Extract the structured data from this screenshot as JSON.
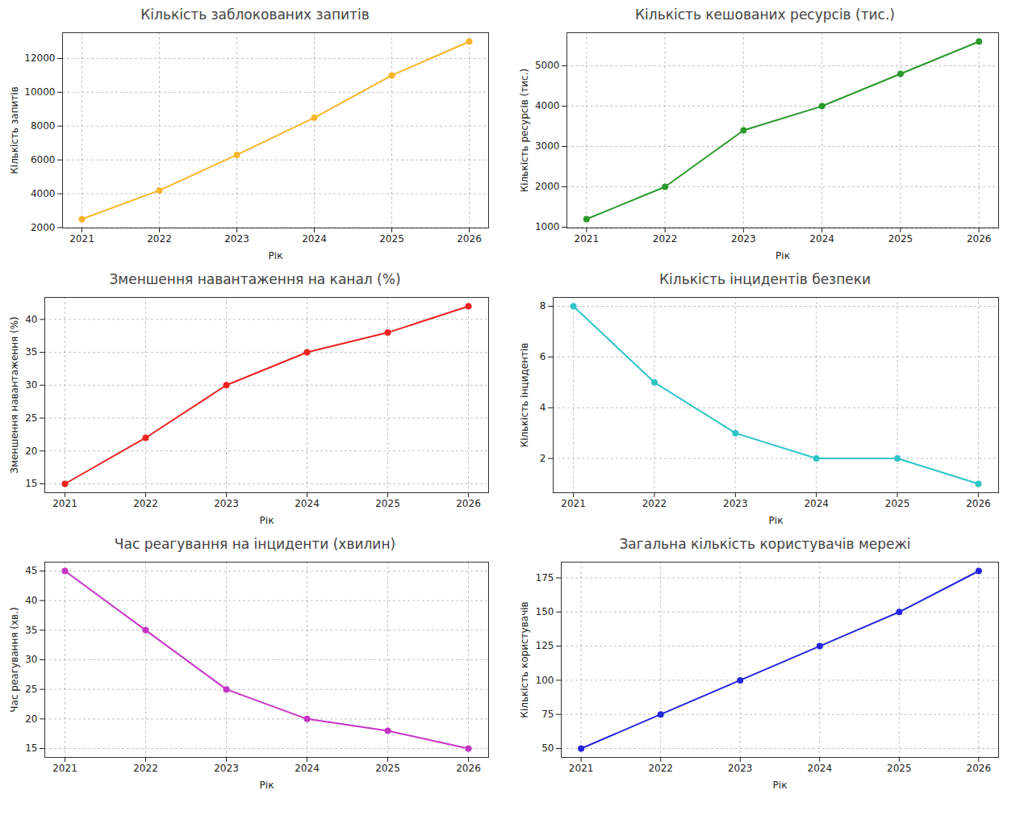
{
  "chart_data": [
    {
      "type": "line",
      "title": "Кількість заблокованих запитів",
      "x_label": "Рік",
      "y_label": "Кількість запитів",
      "x": [
        2021,
        2022,
        2023,
        2024,
        2025,
        2026
      ],
      "values": [
        2500,
        4200,
        6300,
        8500,
        11000,
        13000
      ],
      "color": "#f7b52c",
      "marker": "o",
      "line_style": "solid",
      "grid": true,
      "xlim": [
        2020.75,
        2026.25
      ],
      "xticks": [
        2021,
        2022,
        2023,
        2024,
        2025,
        2026
      ],
      "ylim": [
        1975,
        13525
      ],
      "yticks": [
        2000,
        4000,
        6000,
        8000,
        10000,
        12000
      ]
    },
    {
      "type": "line",
      "title": "Кількість кешованих ресурсів (тис.)",
      "x_label": "Рік",
      "y_label": "Кількість ресурсів (тис.)",
      "x": [
        2021,
        2022,
        2023,
        2024,
        2025,
        2026
      ],
      "values": [
        1200,
        2000,
        3400,
        4000,
        4800,
        5600
      ],
      "color": "#2b9a2b",
      "marker": "o",
      "line_style": "solid",
      "grid": true,
      "xlim": [
        2020.75,
        2026.25
      ],
      "xticks": [
        2021,
        2022,
        2023,
        2024,
        2025,
        2026
      ],
      "ylim": [
        980,
        5820
      ],
      "yticks": [
        1000,
        2000,
        3000,
        4000,
        5000
      ]
    },
    {
      "type": "line",
      "title": "Зменшення навантаження на канал (%)",
      "x_label": "Рік",
      "y_label": "Зменшення навантаження (%)",
      "x": [
        2021,
        2022,
        2023,
        2024,
        2025,
        2026
      ],
      "values": [
        15,
        22,
        30,
        35,
        38,
        42
      ],
      "color": "#ee2222",
      "marker": "o",
      "line_style": "solid",
      "grid": true,
      "xlim": [
        2020.75,
        2026.25
      ],
      "xticks": [
        2021,
        2022,
        2023,
        2024,
        2025,
        2026
      ],
      "ylim": [
        13.65,
        43.35
      ],
      "yticks": [
        15,
        20,
        25,
        30,
        35,
        40
      ]
    },
    {
      "type": "line",
      "title": "Кількість інцидентів безпеки",
      "x_label": "Рік",
      "y_label": "Кількість інцидентів",
      "x": [
        2021,
        2022,
        2023,
        2024,
        2025,
        2026
      ],
      "values": [
        8,
        5,
        3,
        2,
        2,
        1
      ],
      "color": "#2ec4c8",
      "marker": "o",
      "line_style": "solid",
      "grid": true,
      "xlim": [
        2020.75,
        2026.25
      ],
      "xticks": [
        2021,
        2022,
        2023,
        2024,
        2025,
        2026
      ],
      "ylim": [
        0.65,
        8.35
      ],
      "yticks": [
        2,
        4,
        6,
        8
      ]
    },
    {
      "type": "line",
      "title": "Час реагування на інциденти (хвилин)",
      "x_label": "Рік",
      "y_label": "Час реагування (хв.)",
      "x": [
        2021,
        2022,
        2023,
        2024,
        2025,
        2026
      ],
      "values": [
        45,
        35,
        25,
        20,
        18,
        15
      ],
      "color": "#c634c6",
      "marker": "o",
      "line_style": "solid",
      "grid": true,
      "xlim": [
        2020.75,
        2026.25
      ],
      "xticks": [
        2021,
        2022,
        2023,
        2024,
        2025,
        2026
      ],
      "ylim": [
        13.5,
        46.5
      ],
      "yticks": [
        15,
        20,
        25,
        30,
        35,
        40,
        45
      ]
    },
    {
      "type": "line",
      "title": "Загальна кількість користувачів мережі",
      "x_label": "Рік",
      "y_label": "Кількість користувачів",
      "x": [
        2021,
        2022,
        2023,
        2024,
        2025,
        2026
      ],
      "values": [
        50,
        75,
        100,
        125,
        150,
        180
      ],
      "color": "#2525e0",
      "marker": "o",
      "line_style": "solid",
      "grid": true,
      "xlim": [
        2020.75,
        2026.25
      ],
      "xticks": [
        2021,
        2022,
        2023,
        2024,
        2025,
        2026
      ],
      "ylim": [
        43.5,
        186.5
      ],
      "yticks": [
        50,
        75,
        100,
        125,
        150,
        175
      ]
    }
  ]
}
